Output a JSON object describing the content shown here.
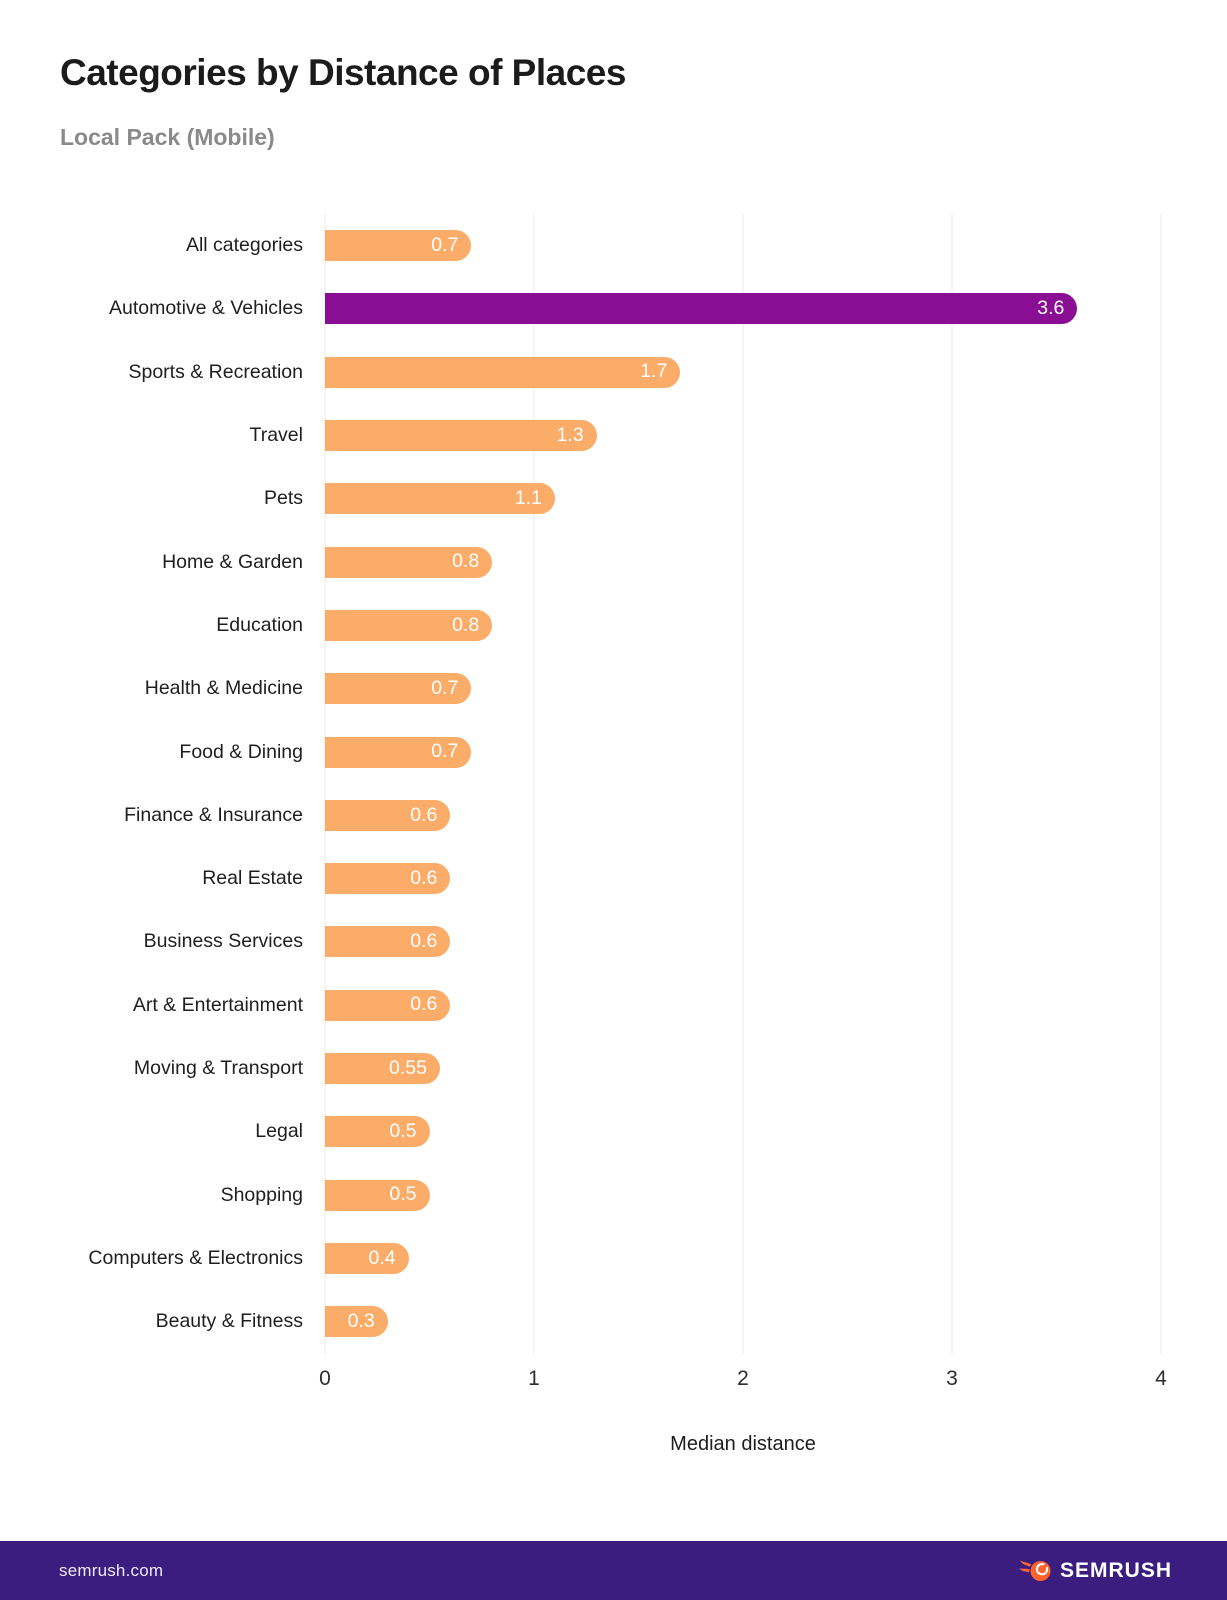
{
  "header": {
    "title": "Categories by Distance of Places",
    "subtitle": "Local Pack (Mobile)"
  },
  "chart_data": {
    "type": "bar",
    "orientation": "horizontal",
    "categories": [
      "All categories",
      "Automotive & Vehicles",
      "Sports & Recreation",
      "Travel",
      "Pets",
      "Home & Garden",
      "Education",
      "Health & Medicine",
      "Food & Dining",
      "Finance & Insurance",
      "Real Estate",
      "Business Services",
      "Art & Entertainment",
      "Moving & Transport",
      "Legal",
      "Shopping",
      "Computers & Electronics",
      "Beauty & Fitness"
    ],
    "values": [
      0.7,
      3.6,
      1.7,
      1.3,
      1.1,
      0.8,
      0.8,
      0.7,
      0.7,
      0.6,
      0.6,
      0.6,
      0.6,
      0.55,
      0.5,
      0.5,
      0.4,
      0.3
    ],
    "value_labels": [
      "0.7",
      "3.6",
      "1.7",
      "1.3",
      "1.1",
      "0.8",
      "0.8",
      "0.7",
      "0.7",
      "0.6",
      "0.6",
      "0.6",
      "0.6",
      "0.55",
      "0.5",
      "0.5",
      "0.4",
      "0.3"
    ],
    "highlight_index": 1,
    "xlabel": "Median distance",
    "xlim": [
      0,
      4
    ],
    "xticks": [
      0,
      1,
      2,
      3,
      4
    ],
    "grid": true,
    "colors": {
      "bar": "#FBAC68",
      "highlight": "#8A0E93",
      "value_text": "#FFFFFF",
      "gridline": "#E8E8E8"
    }
  },
  "footer": {
    "site": "semrush.com",
    "brand": "SEMRUSH",
    "background": "#3B1D80",
    "logo_orange": "#FF642D"
  }
}
